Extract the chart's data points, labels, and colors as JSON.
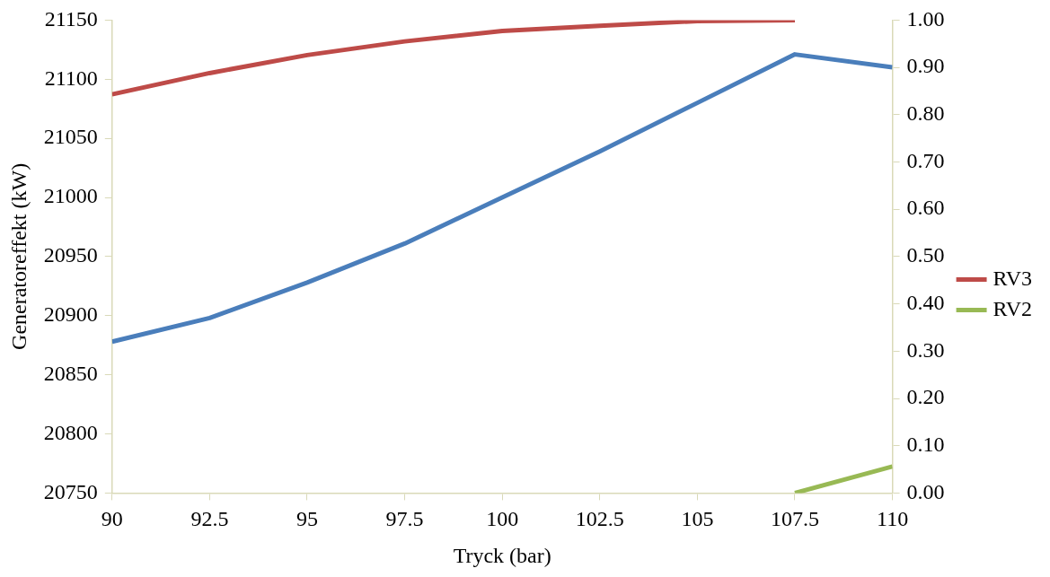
{
  "chart_data": {
    "type": "line",
    "xlabel": "Tryck (bar)",
    "ylabel": "Generatoreffekt (kW)",
    "x": [
      90,
      92.5,
      95,
      97.5,
      100,
      102.5,
      105,
      107.5,
      110
    ],
    "xlim": [
      90,
      110
    ],
    "xticks": [
      90,
      92.5,
      95,
      97.5,
      100,
      102.5,
      105,
      107.5,
      110
    ],
    "ylim": [
      20750,
      21150
    ],
    "yticks": [
      20750,
      20800,
      20850,
      20900,
      20950,
      21000,
      21050,
      21100,
      21150
    ],
    "y2lim": [
      0,
      1
    ],
    "y2ticks": [
      {
        "value": 0,
        "label": "0.00"
      },
      {
        "value": 0.1,
        "label": "0.10"
      },
      {
        "value": 0.2,
        "label": "0.20"
      },
      {
        "value": 0.3,
        "label": "0.30"
      },
      {
        "value": 0.4,
        "label": "0.40"
      },
      {
        "value": 0.5,
        "label": "0.50"
      },
      {
        "value": 0.6,
        "label": "0.60"
      },
      {
        "value": 0.7,
        "label": "0.70"
      },
      {
        "value": 0.8,
        "label": "0.80"
      },
      {
        "value": 0.9,
        "label": "0.90"
      },
      {
        "value": 1,
        "label": "1.00"
      }
    ],
    "grid": false,
    "legend": "right",
    "marker": "none",
    "line_style": "solid",
    "series": [
      {
        "color": "#4a7ebb",
        "values": [
          20878,
          20898,
          20928,
          20961,
          21000,
          21039,
          21080,
          21121,
          21110
        ]
      },
      {
        "name": "RV3",
        "color": "#be4b48",
        "axis": "y2",
        "values": [
          0.843,
          0.888,
          0.926,
          0.955,
          0.977,
          0.988,
          0.998,
          1.0,
          null
        ]
      },
      {
        "name": "RV2",
        "color": "#98b954",
        "axis": "y2",
        "values": [
          null,
          null,
          null,
          null,
          null,
          null,
          null,
          0.0,
          0.056
        ]
      }
    ]
  }
}
